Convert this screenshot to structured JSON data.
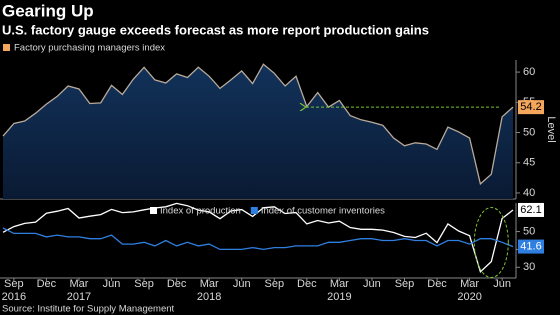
{
  "source": "Source: Institute for Supply Management",
  "chart_data": [
    {
      "type": "area",
      "title": "Gearing Up",
      "subtitle": "U.S. factory gauge exceeds forecast as more report production gains",
      "y_label": "Level",
      "series": [
        {
          "name": "Factory purchasing managers index",
          "color": "#f4a65c",
          "line_color": "#b9aa9a",
          "values": [
            49.4,
            51.5,
            51.9,
            53.2,
            54.7,
            56.0,
            57.7,
            57.2,
            54.8,
            54.9,
            57.8,
            56.3,
            58.8,
            60.8,
            58.7,
            58.2,
            59.7,
            59.1,
            60.8,
            59.3,
            57.3,
            58.7,
            60.2,
            58.1,
            61.3,
            59.8,
            57.7,
            59.3,
            54.3,
            56.6,
            54.2,
            55.3,
            52.8,
            52.1,
            51.7,
            51.2,
            49.1,
            47.8,
            48.3,
            48.1,
            47.2,
            50.9,
            50.1,
            49.1,
            41.5,
            43.1,
            52.6,
            54.2
          ]
        }
      ],
      "ylim": [
        39,
        62
      ],
      "yticks": [
        40,
        45,
        50,
        55,
        60
      ]
    },
    {
      "type": "line",
      "categories": [
        null,
        "Sep",
        null,
        null,
        "Dec",
        null,
        null,
        "Mar",
        null,
        null,
        "Jun",
        null,
        null,
        "Sep",
        null,
        null,
        "Dec",
        null,
        null,
        "Mar",
        null,
        null,
        "Jun",
        null,
        null,
        "Sep",
        null,
        null,
        "Dec",
        null,
        null,
        "Mar",
        null,
        null,
        "Jun",
        null,
        null,
        "Sep",
        null,
        null,
        "Dec",
        null,
        null,
        "Mar",
        null,
        null,
        "Jun",
        null
      ],
      "years": [
        null,
        "2016",
        null,
        null,
        null,
        null,
        null,
        "2017",
        null,
        null,
        null,
        null,
        null,
        null,
        null,
        null,
        null,
        null,
        null,
        "2018",
        null,
        null,
        null,
        null,
        null,
        null,
        null,
        null,
        null,
        null,
        null,
        "2019",
        null,
        null,
        null,
        null,
        null,
        null,
        null,
        null,
        null,
        null,
        null,
        "2020",
        null,
        null,
        null,
        null
      ],
      "series": [
        {
          "name": "Index of production",
          "color": "#ffffff",
          "values": [
            49.6,
            52.8,
            54.6,
            55.3,
            60.3,
            61.4,
            62.9,
            57.6,
            58.6,
            59.5,
            62.4,
            60.6,
            61.0,
            62.2,
            63.2,
            63.9,
            65.8,
            64.5,
            62.0,
            61.0,
            57.2,
            61.5,
            62.3,
            58.5,
            63.3,
            63.9,
            60.1,
            60.6,
            54.3,
            56.2,
            54.8,
            55.8,
            52.3,
            51.3,
            51.3,
            50.8,
            49.5,
            47.3,
            46.7,
            49.1,
            43.8,
            54.3,
            50.3,
            47.7,
            27.5,
            33.2,
            57.3,
            62.1
          ]
        },
        {
          "name": "Index of customer inventories",
          "color": "#2f7fe0",
          "values": [
            52,
            49,
            49,
            49,
            47,
            48,
            47,
            47,
            46,
            46,
            48,
            43,
            43,
            44,
            42,
            45,
            42,
            44,
            42,
            43,
            40,
            40,
            40,
            41,
            40,
            41,
            41,
            42,
            42,
            42,
            44,
            44,
            45,
            46,
            46,
            45,
            45,
            46,
            45,
            45,
            42,
            45,
            45,
            43,
            46,
            46,
            44,
            41.6
          ]
        }
      ],
      "ylim": [
        24,
        66
      ],
      "yticks": [
        30,
        40,
        50
      ]
    }
  ]
}
